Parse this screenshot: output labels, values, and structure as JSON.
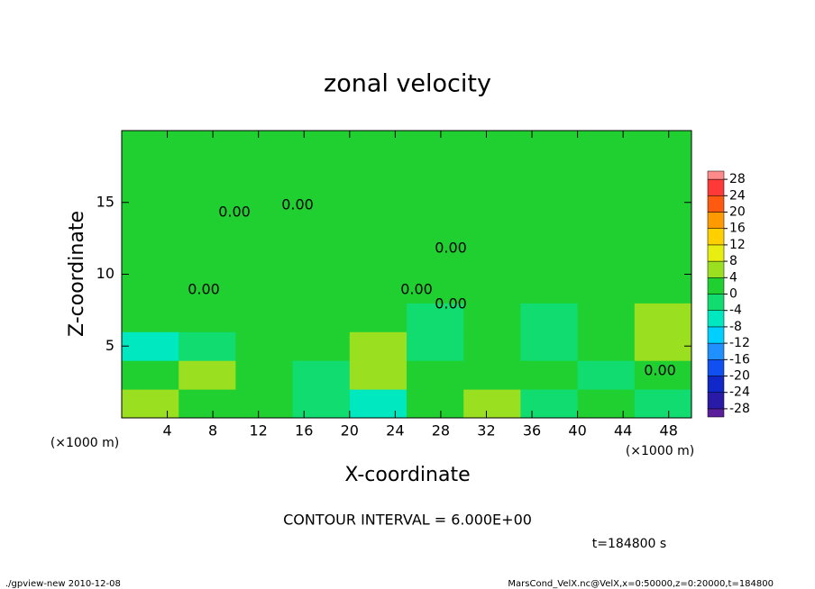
{
  "chart_data": {
    "type": "contour",
    "title": "zonal velocity",
    "xlabel": "X-coordinate",
    "ylabel": "Z-coordinate",
    "x_unit": "(×1000 m)",
    "note": "CONTOUR INTERVAL = 6.000E+00",
    "time_label": "t=184800 s",
    "footer_left": "./gpview-new  2010-12-08",
    "footer_right": "MarsCond_VelX.nc@VelX,x=0:50000,z=0:20000,t=184800",
    "contour_label": "0.00",
    "xlim": [
      0,
      50
    ],
    "ylim": [
      0,
      20
    ],
    "xticks": [
      4,
      8,
      12,
      16,
      20,
      24,
      28,
      32,
      36,
      40,
      44,
      48
    ],
    "yticks": [
      5,
      10,
      15
    ],
    "x_edges": [
      0,
      5,
      10,
      15,
      20,
      25,
      30,
      35,
      40,
      45,
      50
    ],
    "z_edges": [
      0,
      2,
      4,
      6,
      8,
      10,
      15,
      20
    ],
    "values": [
      [
        4,
        2,
        1,
        -2,
        -6,
        2,
        4,
        -2,
        2,
        -4
      ],
      [
        1,
        5,
        2,
        -1,
        4,
        1,
        2,
        3,
        -1,
        2
      ],
      [
        -5,
        -1,
        2,
        3,
        6,
        -2,
        2,
        -3,
        2,
        5
      ],
      [
        1,
        2,
        1,
        2,
        3,
        -1,
        1,
        -1,
        2,
        4
      ],
      [
        2,
        2,
        2,
        2,
        2,
        1,
        1,
        1,
        1,
        2
      ],
      [
        2,
        2,
        1,
        2,
        2,
        1,
        1,
        2,
        2,
        1
      ],
      [
        2,
        2,
        2,
        2,
        2,
        2,
        2,
        2,
        2,
        2
      ]
    ],
    "clim": [
      -30,
      30
    ],
    "cticks": [
      -28,
      -24,
      -20,
      -16,
      -12,
      -8,
      -4,
      0,
      4,
      8,
      12,
      16,
      20,
      24,
      28
    ],
    "colors": [
      "#5a1e9c",
      "#2a1aa8",
      "#1028c8",
      "#1050f0",
      "#2090ff",
      "#00d0ff",
      "#00e8c0",
      "#10dc70",
      "#20d030",
      "#9ae020",
      "#e8ee10",
      "#ffd000",
      "#ff9a00",
      "#ff5a10",
      "#ff3838",
      "#ff8a8a"
    ]
  }
}
